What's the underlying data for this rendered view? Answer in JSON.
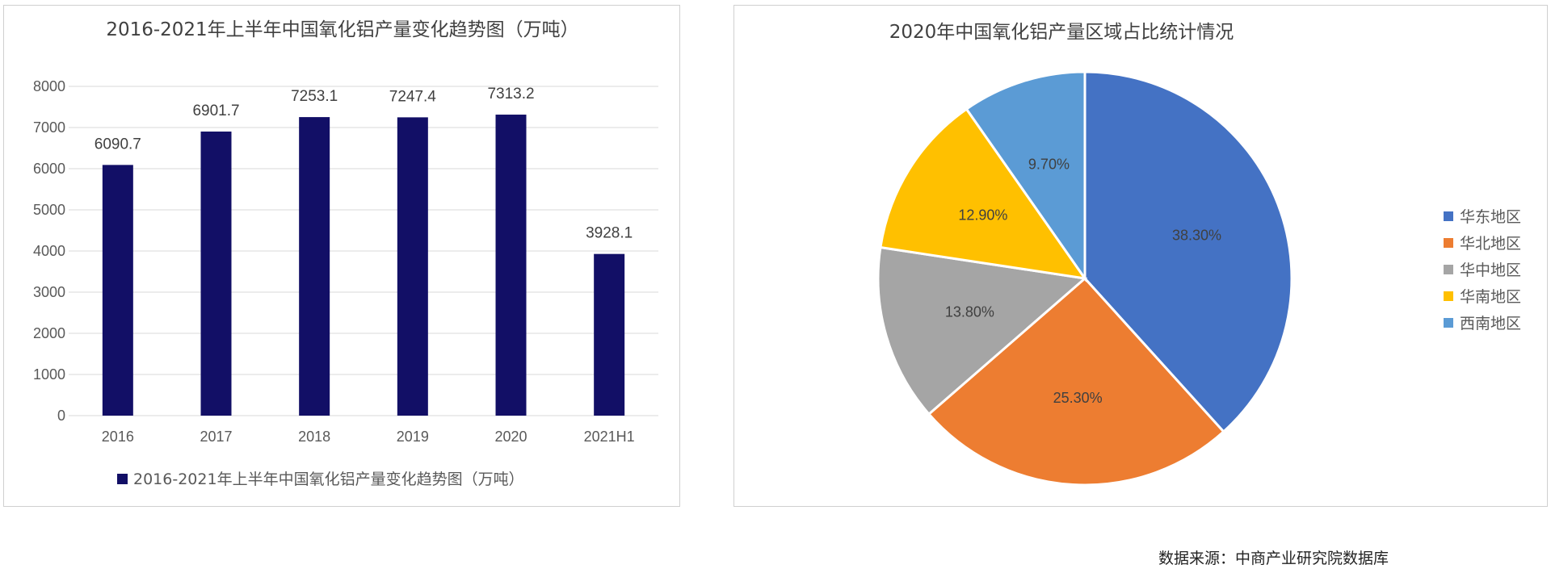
{
  "chart_data": [
    {
      "type": "bar",
      "title": "2016-2021年上半年中国氧化铝产量变化趋势图（万吨）",
      "categories": [
        "2016",
        "2017",
        "2018",
        "2019",
        "2020",
        "2021H1"
      ],
      "series": [
        {
          "name": "2016-2021年上半年中国氧化铝产量变化趋势图（万吨）",
          "values": [
            6090.7,
            6901.7,
            7253.1,
            7247.4,
            7313.2,
            3928.1
          ],
          "value_labels": [
            "6090.7",
            "6901.7",
            "7253.1",
            "7247.4",
            "7313.2",
            "3928.1"
          ],
          "color": "#120F66"
        }
      ],
      "ylim": [
        0,
        8000
      ],
      "yticks": [
        "0",
        "1000",
        "2000",
        "3000",
        "4000",
        "5000",
        "6000",
        "7000",
        "8000"
      ],
      "grid": true,
      "legend_position": "bottom"
    },
    {
      "type": "pie",
      "title": "2020年中国氧化铝产量区域占比统计情况",
      "slices": [
        {
          "label": "华东地区",
          "value": 38.3,
          "text": "38.30%",
          "color": "#4472C4"
        },
        {
          "label": "华北地区",
          "value": 25.3,
          "text": "25.30%",
          "color": "#ED7D31"
        },
        {
          "label": "华中地区",
          "value": 13.8,
          "text": "13.80%",
          "color": "#A5A5A5"
        },
        {
          "label": "华南地区",
          "value": 12.9,
          "text": "12.90%",
          "color": "#FFC000"
        },
        {
          "label": "西南地区",
          "value": 9.7,
          "text": "9.70%",
          "color": "#5B9BD5"
        }
      ],
      "legend_position": "right"
    }
  ],
  "source": "数据来源：中商产业研究院数据库"
}
